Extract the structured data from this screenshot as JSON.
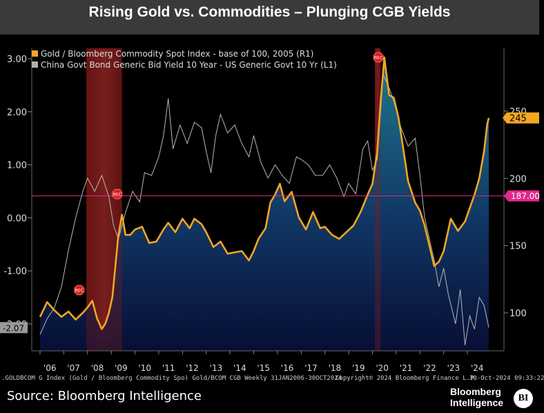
{
  "header": {
    "title": "Rising Gold vs. Commodities – Plunging CGB Yields"
  },
  "footer": {
    "ticker_text": ".GOLDBCOM G Index (Gold / Bloomberg Commodity Spo) Gold/BCOM CGB  Weekly 31JAN2006-30OCT2024",
    "copyright": "Copyright© 2024 Bloomberg Finance L.P.",
    "timestamp": "30-Oct-2024 09:33:22",
    "source": "Source: Bloomberg Intelligence",
    "brand_line1": "Bloomberg",
    "brand_line2": "Intelligence",
    "logo_text": "BI"
  },
  "chart_data": {
    "type": "line",
    "legend": [
      {
        "name": "Gold / Bloomberg Commodity Spot Index - base of 100, 2005 (R1)",
        "color": "#f5a623"
      },
      {
        "name": "China Govt Bond Generic Bid Yield 10 Year - US Generic Govt 10 Yr (L1)",
        "color": "#b0b0b0"
      }
    ],
    "x_ticks": [
      "'06",
      "'07",
      "'08",
      "'09",
      "'10",
      "'11",
      "'12",
      "'13",
      "'14",
      "'15",
      "'16",
      "'17",
      "'18",
      "'19",
      "'20",
      "'21",
      "'22",
      "'23",
      "'24"
    ],
    "left_axis": {
      "ticks": [
        "3.00",
        "2.00",
        "1.00",
        "0.00",
        "-1.00",
        "-2.00"
      ],
      "range": [
        -2.4,
        3.1
      ]
    },
    "right_axis": {
      "ticks": [
        "250",
        "200",
        "150",
        "100"
      ],
      "range": [
        80,
        292
      ]
    },
    "recession_label": "REC",
    "recessions": [
      [
        2007.95,
        2009.45
      ],
      [
        2020.1,
        2020.35
      ]
    ],
    "reference_line": {
      "axis": "right",
      "value": 187,
      "label": "187.00",
      "color": "#e0288a"
    },
    "last_values": {
      "gold_label": "245",
      "spread_label": "-2.07"
    },
    "series": [
      {
        "name": "Gold / Bloomberg Commodity Spot Index - base of 100, 2005 (R1)",
        "axis": "right",
        "points": [
          [
            2006.0,
            97
          ],
          [
            2006.3,
            108
          ],
          [
            2006.6,
            102
          ],
          [
            2006.9,
            97
          ],
          [
            2007.2,
            101
          ],
          [
            2007.5,
            95
          ],
          [
            2007.8,
            100
          ],
          [
            2008.0,
            104
          ],
          [
            2008.2,
            109
          ],
          [
            2008.4,
            96
          ],
          [
            2008.6,
            88
          ],
          [
            2008.75,
            92
          ],
          [
            2008.9,
            100
          ],
          [
            2009.05,
            112
          ],
          [
            2009.2,
            140
          ],
          [
            2009.3,
            158
          ],
          [
            2009.45,
            173
          ],
          [
            2009.6,
            158
          ],
          [
            2009.8,
            158
          ],
          [
            2010.0,
            162
          ],
          [
            2010.3,
            164
          ],
          [
            2010.6,
            152
          ],
          [
            2010.9,
            153
          ],
          [
            2011.2,
            162
          ],
          [
            2011.4,
            167
          ],
          [
            2011.7,
            160
          ],
          [
            2012.0,
            170
          ],
          [
            2012.3,
            163
          ],
          [
            2012.5,
            170
          ],
          [
            2012.8,
            166
          ],
          [
            2013.0,
            160
          ],
          [
            2013.3,
            149
          ],
          [
            2013.6,
            153
          ],
          [
            2013.9,
            144
          ],
          [
            2014.2,
            145
          ],
          [
            2014.5,
            146
          ],
          [
            2014.8,
            139
          ],
          [
            2015.0,
            146
          ],
          [
            2015.2,
            155
          ],
          [
            2015.5,
            163
          ],
          [
            2015.7,
            182
          ],
          [
            2015.9,
            188
          ],
          [
            2016.1,
            196
          ],
          [
            2016.3,
            183
          ],
          [
            2016.6,
            190
          ],
          [
            2016.9,
            171
          ],
          [
            2017.2,
            162
          ],
          [
            2017.5,
            175
          ],
          [
            2017.8,
            163
          ],
          [
            2018.0,
            164
          ],
          [
            2018.3,
            158
          ],
          [
            2018.6,
            155
          ],
          [
            2018.9,
            160
          ],
          [
            2019.2,
            165
          ],
          [
            2019.5,
            175
          ],
          [
            2019.8,
            188
          ],
          [
            2020.0,
            196
          ],
          [
            2020.2,
            220
          ],
          [
            2020.35,
            258
          ],
          [
            2020.5,
            290
          ],
          [
            2020.7,
            262
          ],
          [
            2020.9,
            260
          ],
          [
            2021.1,
            245
          ],
          [
            2021.3,
            222
          ],
          [
            2021.5,
            198
          ],
          [
            2021.8,
            182
          ],
          [
            2022.0,
            176
          ],
          [
            2022.2,
            165
          ],
          [
            2022.4,
            150
          ],
          [
            2022.6,
            135
          ],
          [
            2022.8,
            138
          ],
          [
            2023.0,
            146
          ],
          [
            2023.3,
            170
          ],
          [
            2023.6,
            161
          ],
          [
            2023.9,
            168
          ],
          [
            2024.1,
            178
          ],
          [
            2024.3,
            188
          ],
          [
            2024.5,
            200
          ],
          [
            2024.7,
            220
          ],
          [
            2024.83,
            240
          ],
          [
            2024.9,
            245
          ]
        ]
      },
      {
        "name": "China Govt Bond Generic Bid Yield 10 Year - US Generic Govt 10 Yr (L1)",
        "axis": "left",
        "points": [
          [
            2006.0,
            -2.2
          ],
          [
            2006.3,
            -1.9
          ],
          [
            2006.6,
            -1.7
          ],
          [
            2006.9,
            -1.3
          ],
          [
            2007.2,
            -0.6
          ],
          [
            2007.5,
            0.0
          ],
          [
            2007.8,
            0.5
          ],
          [
            2008.0,
            0.75
          ],
          [
            2008.3,
            0.5
          ],
          [
            2008.6,
            0.8
          ],
          [
            2008.9,
            0.4
          ],
          [
            2009.1,
            -0.15
          ],
          [
            2009.3,
            -0.4
          ],
          [
            2009.6,
            0.1
          ],
          [
            2009.9,
            0.5
          ],
          [
            2010.2,
            0.3
          ],
          [
            2010.4,
            0.85
          ],
          [
            2010.7,
            0.8
          ],
          [
            2011.0,
            1.15
          ],
          [
            2011.2,
            1.55
          ],
          [
            2011.4,
            2.25
          ],
          [
            2011.6,
            1.3
          ],
          [
            2011.9,
            1.75
          ],
          [
            2012.2,
            1.4
          ],
          [
            2012.5,
            1.8
          ],
          [
            2012.8,
            1.7
          ],
          [
            2013.0,
            1.25
          ],
          [
            2013.2,
            0.85
          ],
          [
            2013.4,
            1.55
          ],
          [
            2013.6,
            1.95
          ],
          [
            2013.9,
            1.6
          ],
          [
            2014.2,
            1.75
          ],
          [
            2014.5,
            1.4
          ],
          [
            2014.8,
            1.15
          ],
          [
            2015.0,
            1.55
          ],
          [
            2015.3,
            1.05
          ],
          [
            2015.6,
            0.75
          ],
          [
            2015.9,
            1.0
          ],
          [
            2016.2,
            0.8
          ],
          [
            2016.5,
            0.65
          ],
          [
            2016.8,
            1.15
          ],
          [
            2017.0,
            1.1
          ],
          [
            2017.3,
            1.0
          ],
          [
            2017.6,
            0.8
          ],
          [
            2017.9,
            0.8
          ],
          [
            2018.2,
            1.0
          ],
          [
            2018.5,
            0.75
          ],
          [
            2018.8,
            0.4
          ],
          [
            2019.0,
            0.65
          ],
          [
            2019.3,
            0.45
          ],
          [
            2019.6,
            1.3
          ],
          [
            2019.8,
            1.45
          ],
          [
            2020.0,
            0.9
          ],
          [
            2020.2,
            1.1
          ],
          [
            2020.45,
            2.7
          ],
          [
            2020.7,
            2.45
          ],
          [
            2020.9,
            2.2
          ],
          [
            2021.2,
            1.7
          ],
          [
            2021.5,
            1.35
          ],
          [
            2021.8,
            1.5
          ],
          [
            2022.0,
            0.8
          ],
          [
            2022.2,
            0.0
          ],
          [
            2022.4,
            -0.4
          ],
          [
            2022.6,
            -0.8
          ],
          [
            2022.8,
            -1.3
          ],
          [
            2023.0,
            -0.95
          ],
          [
            2023.2,
            -1.45
          ],
          [
            2023.5,
            -2.0
          ],
          [
            2023.7,
            -1.35
          ],
          [
            2023.9,
            -2.4
          ],
          [
            2024.1,
            -1.85
          ],
          [
            2024.3,
            -2.1
          ],
          [
            2024.5,
            -1.5
          ],
          [
            2024.7,
            -1.65
          ],
          [
            2024.9,
            -2.07
          ]
        ]
      }
    ]
  }
}
